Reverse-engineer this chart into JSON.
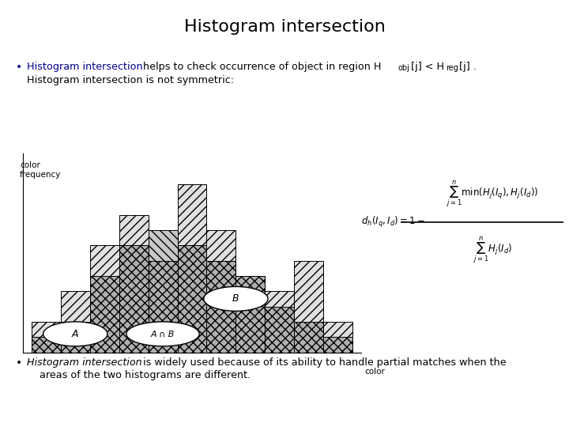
{
  "title": "Histogram intersection",
  "title_fontsize": 16,
  "title_color": "#000000",
  "background_color": "#ffffff",
  "bullet1_colored": "Histogram intersection",
  "bullet1_rest": " helps to check occurrence of object in region H",
  "bullet1_sub1": "obj",
  "bullet1_bracket1": "[j] < H",
  "bullet1_sub2": "reg",
  "bullet1_bracket2": "[j] .",
  "bullet2_text": "Histogram intersection is not symmetric:",
  "bullet3_italic": "Histogram intersection",
  "bullet3_rest": " is widely used because of its ability to handle partial matches when the",
  "bullet3_line2": "    areas of the two histograms are different.",
  "hist_A": [
    2,
    4,
    7,
    9,
    6,
    11,
    8,
    5,
    4,
    6,
    2
  ],
  "hist_B": [
    1,
    2,
    5,
    7,
    8,
    7,
    6,
    5,
    3,
    2,
    1
  ],
  "bar_width": 1.0,
  "hist_xlim": [
    -0.3,
    11.3
  ],
  "hist_ylim": [
    0,
    13
  ],
  "ellipse_A": [
    1.5,
    1.2,
    2.2,
    1.6
  ],
  "ellipse_AB": [
    4.5,
    1.2,
    2.5,
    1.6
  ],
  "ellipse_B": [
    7.0,
    3.5,
    2.2,
    1.6
  ],
  "formula_left": "$d_h(I_q,I_d) = 1-$",
  "formula_numer": "$\\sum_{j=1}^{n}\\min(H_j(I_q),H_j(I_d))$",
  "formula_denom": "$\\sum_{j=1}^{n} H_j(I_d)$",
  "color_label": "color\nfrequency",
  "xaxis_label": "color",
  "bullet_color": "#00008B",
  "text_color": "#000000"
}
